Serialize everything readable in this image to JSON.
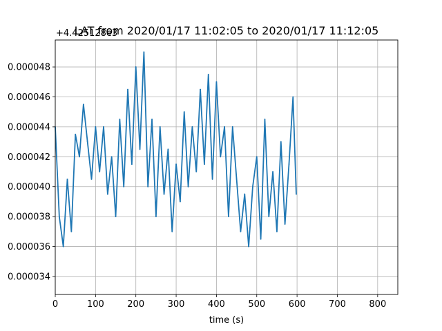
{
  "chart_data": {
    "type": "line",
    "title": "LAT from 2020/01/17 11:02:05 to 2020/01/17 11:12:05",
    "offset_label": "+4.425128e3",
    "xlabel": "time (s)",
    "ylabel": "",
    "xlim": [
      0,
      850
    ],
    "ylim": [
      3.28e-05,
      4.98e-05
    ],
    "grid": true,
    "x_ticks": [
      0,
      100,
      200,
      300,
      400,
      500,
      600,
      700,
      800
    ],
    "x_tick_labels": [
      "0",
      "100",
      "200",
      "300",
      "400",
      "500",
      "600",
      "700",
      "800"
    ],
    "y_ticks": [
      3.4e-05,
      3.6e-05,
      3.8e-05,
      4e-05,
      4.2e-05,
      4.4e-05,
      4.6e-05,
      4.8e-05
    ],
    "y_tick_labels": [
      "0.000034",
      "0.000036",
      "0.000038",
      "0.000040",
      "0.000042",
      "0.000044",
      "0.000046",
      "0.000048"
    ],
    "series": [
      {
        "name": "",
        "color": "#1f77b4",
        "x": [
          0,
          10,
          20,
          30,
          40,
          50,
          60,
          70,
          80,
          90,
          100,
          110,
          120,
          130,
          140,
          150,
          160,
          170,
          180,
          190,
          200,
          210,
          220,
          230,
          240,
          250,
          260,
          270,
          280,
          290,
          300,
          310,
          320,
          330,
          340,
          350,
          360,
          370,
          380,
          390,
          400,
          410,
          420,
          430,
          440,
          450,
          460,
          470,
          480,
          490,
          500,
          510,
          520,
          530,
          540,
          550,
          560,
          570,
          580,
          590,
          598
        ],
        "y": [
          4.4e-05,
          3.8e-05,
          3.6e-05,
          4.05e-05,
          3.7e-05,
          4.35e-05,
          4.2e-05,
          4.55e-05,
          4.3e-05,
          4.05e-05,
          4.4e-05,
          4.1e-05,
          4.4e-05,
          3.95e-05,
          4.2e-05,
          3.8e-05,
          4.45e-05,
          4e-05,
          4.65e-05,
          4.15e-05,
          4.8e-05,
          4.25e-05,
          4.9e-05,
          4e-05,
          4.45e-05,
          3.8e-05,
          4.4e-05,
          3.95e-05,
          4.25e-05,
          3.7e-05,
          4.15e-05,
          3.9e-05,
          4.5e-05,
          4e-05,
          4.4e-05,
          4.1e-05,
          4.65e-05,
          4.15e-05,
          4.75e-05,
          4.05e-05,
          4.7e-05,
          4.2e-05,
          4.4e-05,
          3.8e-05,
          4.4e-05,
          4.05e-05,
          3.7e-05,
          3.95e-05,
          3.6e-05,
          4e-05,
          4.2e-05,
          3.65e-05,
          4.45e-05,
          3.8e-05,
          4.1e-05,
          3.7e-05,
          4.3e-05,
          3.75e-05,
          4.15e-05,
          4.6e-05,
          3.95e-05
        ]
      }
    ]
  }
}
